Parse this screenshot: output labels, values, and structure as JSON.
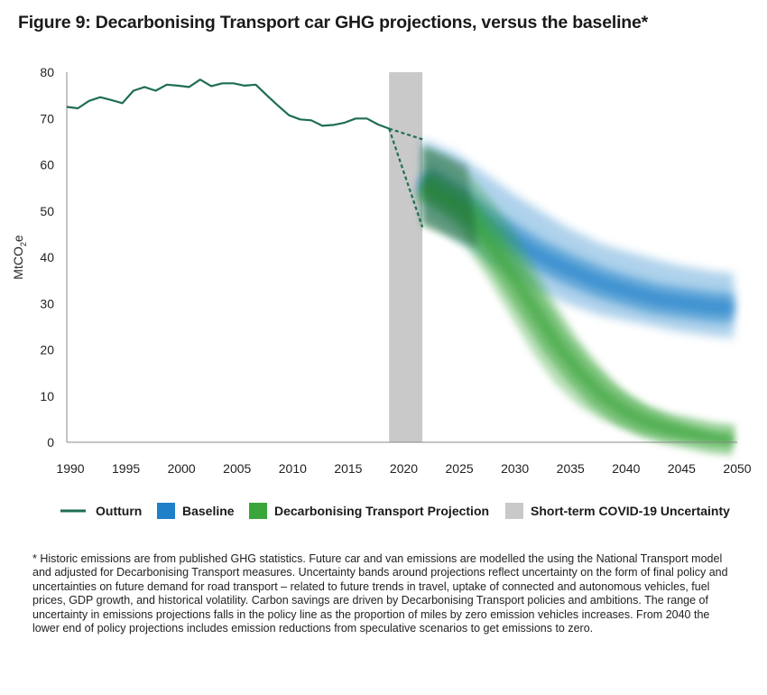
{
  "title": "Figure 9: Decarbonising Transport car GHG projections, versus the baseline*",
  "footnote": "* Historic emissions are from published GHG statistics. Future car and van emissions are modelled the using the National Transport model and adjusted for Decarbonising Transport measures. Uncertainty bands around projections reflect uncertainty on the form of final policy and uncertainties on future demand for road transport – related to future trends in travel, uptake of connected and autonomous vehicles, fuel prices, GDP growth, and historical volatility. Carbon savings are driven by Decarbonising Transport policies and ambitions. The range of uncertainty in emissions projections falls in the policy line as the proportion of miles by zero emission vehicles increases. From 2040 the lower end of policy projections includes emission reductions from speculative scenarios to get emissions to zero.",
  "colors": {
    "outturn": "#1e6e50",
    "baseline": "#1f7fc8",
    "decarbonising": "#3aa53a",
    "covid": "#c9c9c9",
    "axis": "#888888"
  },
  "chart_data": {
    "type": "area",
    "ylabel": "MtCO2e",
    "ylabel_parts": {
      "base": "MtCO",
      "sub": "2",
      "tail": "e"
    },
    "xlim": [
      1990,
      2050
    ],
    "ylim": [
      0,
      80
    ],
    "x_ticks": [
      1990,
      1995,
      2000,
      2005,
      2010,
      2015,
      2020,
      2025,
      2030,
      2035,
      2040,
      2045,
      2050
    ],
    "y_ticks": [
      0,
      10,
      20,
      30,
      40,
      50,
      60,
      70,
      80
    ],
    "grid": false,
    "legend_position": "bottom",
    "covid_uncertainty": {
      "name": "Short-term COVID-19 Uncertainty",
      "x_start": 2019,
      "x_end": 2022
    },
    "series": [
      {
        "name": "Outturn",
        "style": "line",
        "x": [
          1990,
          1991,
          1992,
          1993,
          1994,
          1995,
          1996,
          1997,
          1998,
          1999,
          2000,
          2001,
          2002,
          2003,
          2004,
          2005,
          2006,
          2007,
          2008,
          2009,
          2010,
          2011,
          2012,
          2013,
          2014,
          2015,
          2016,
          2017,
          2018,
          2019
        ],
        "y": [
          72.5,
          72.2,
          73.8,
          74.6,
          74.0,
          73.3,
          76.0,
          76.8,
          76.0,
          77.3,
          77.1,
          76.8,
          78.4,
          77.0,
          77.6,
          77.6,
          77.1,
          77.3,
          75.0,
          72.8,
          70.7,
          69.8,
          69.6,
          68.4,
          68.6,
          69.1,
          70.0,
          70.0,
          68.7,
          67.8
        ]
      },
      {
        "name": "Outturn projection (dashed)",
        "style": "dashed",
        "x": [
          2019,
          2022
        ],
        "y_upper": [
          67.8,
          65.5
        ],
        "y_lower": [
          67.8,
          46.5
        ]
      },
      {
        "name": "Baseline",
        "style": "band",
        "x": [
          2022,
          2025,
          2028,
          2030,
          2032,
          2035,
          2038,
          2040,
          2043,
          2045,
          2048,
          2050
        ],
        "y_mid": [
          57.0,
          52.5,
          47.0,
          44.0,
          41.0,
          37.5,
          34.5,
          33.0,
          31.0,
          30.3,
          29.3,
          29.0
        ],
        "y_upper": [
          65.5,
          62.5,
          57.5,
          54.0,
          51.0,
          46.5,
          43.0,
          41.5,
          39.5,
          38.3,
          37.0,
          36.5
        ],
        "y_lower": [
          48.5,
          44.0,
          39.0,
          36.0,
          33.0,
          30.0,
          27.5,
          26.5,
          25.0,
          24.0,
          23.0,
          22.5
        ]
      },
      {
        "name": "Decarbonising Transport Projection",
        "style": "band",
        "x": [
          2022,
          2024,
          2026,
          2028,
          2030,
          2032,
          2034,
          2036,
          2038,
          2040,
          2042,
          2044,
          2046,
          2048,
          2050
        ],
        "y_mid": [
          55.5,
          53.0,
          49.5,
          43.5,
          36.5,
          29.0,
          21.5,
          15.5,
          10.5,
          7.0,
          4.5,
          3.0,
          2.0,
          1.0,
          0.5
        ],
        "y_upper": [
          64.0,
          62.0,
          58.5,
          53.0,
          46.5,
          38.5,
          30.0,
          22.5,
          16.5,
          11.5,
          8.0,
          5.5,
          3.5,
          2.0,
          1.0
        ],
        "y_lower": [
          47.0,
          45.0,
          42.0,
          35.0,
          27.0,
          19.0,
          12.5,
          8.0,
          5.0,
          3.0,
          1.5,
          0.6,
          0.2,
          0.1,
          0.0
        ]
      }
    ],
    "legend": [
      "Outturn",
      "Baseline",
      "Decarbonising Transport Projection",
      "Short-term COVID-19 Uncertainty"
    ]
  }
}
